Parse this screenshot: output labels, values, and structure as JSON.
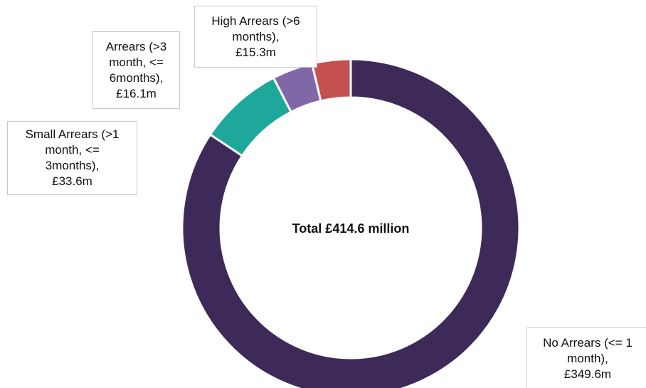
{
  "chart_data": {
    "type": "pie",
    "title": "",
    "center_label": "Total £414.6 million",
    "categories": [
      "No Arrears (<= 1 month)",
      "Small Arrears (>1 month, <= 3months)",
      "Arrears (>3 month, <= 6months)",
      "High Arrears (>6 months)"
    ],
    "values": [
      349.6,
      33.6,
      16.1,
      15.3
    ],
    "unit": "£m",
    "colors": [
      "#3d2a58",
      "#1ea79b",
      "#8068a8",
      "#c55050"
    ],
    "donut": true,
    "labels": [
      {
        "lines": [
          "No Arrears (<= 1",
          "month),",
          "£349.6m"
        ]
      },
      {
        "lines": [
          "Small Arrears (>1",
          "month, <=",
          "3months),",
          "£33.6m"
        ]
      },
      {
        "lines": [
          "Arrears (>3",
          "month, <=",
          "6months),",
          "£16.1m"
        ]
      },
      {
        "lines": [
          "High Arrears (>6",
          "months),",
          "£15.3m"
        ]
      }
    ]
  }
}
